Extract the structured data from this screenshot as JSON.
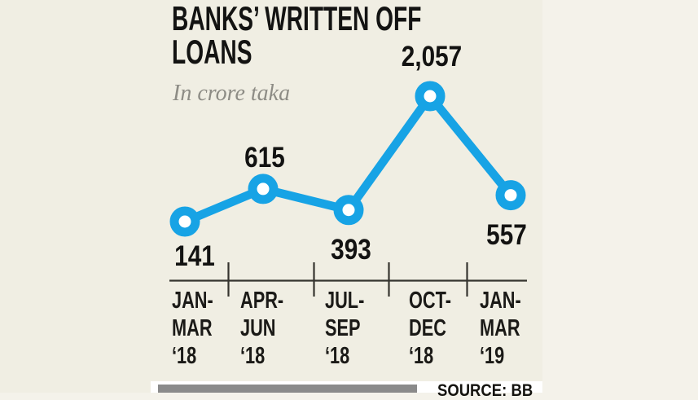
{
  "chart_data": {
    "type": "line",
    "title": "BANKS’ WRITTEN OFF LOANS",
    "title_lines": [
      "BANKS’ WRITTEN OFF",
      "LOANS"
    ],
    "subtitle": "In crore taka",
    "categories": [
      "JAN-MAR ‘18",
      "APR-JUN ‘18",
      "JUL-SEP ‘18",
      "OCT-DEC ‘18",
      "JAN-MAR ‘19"
    ],
    "category_lines": [
      [
        "JAN-",
        "MAR",
        "‘18"
      ],
      [
        "APR-",
        "JUN",
        "‘18"
      ],
      [
        "JUL-",
        "SEP",
        "‘18"
      ],
      [
        "OCT-",
        "DEC",
        "‘18"
      ],
      [
        "JAN-",
        "MAR",
        "‘19"
      ]
    ],
    "values": [
      141,
      615,
      393,
      2057,
      557
    ],
    "value_labels": [
      "141",
      "615",
      "393",
      "2,057",
      "557"
    ],
    "value_label_placement": [
      "below",
      "above",
      "below",
      "above",
      "below"
    ],
    "xlabel": "",
    "ylabel": "In crore taka",
    "ylim": [
      0,
      2200
    ],
    "grid": false,
    "legend": false,
    "series_color": "#17a3e5",
    "marker_fill": "#ffffff",
    "axis_color": "#35342f"
  },
  "source": {
    "label": "SOURCE:",
    "value": "BB"
  },
  "colors": {
    "panel_background": "#f0eee3",
    "page_background": "#f4f2ea",
    "title_text": "#131312",
    "subtitle_text": "#8d8c85",
    "footer_bar": "#8a8a8a",
    "footer_band": "#ffffff"
  }
}
